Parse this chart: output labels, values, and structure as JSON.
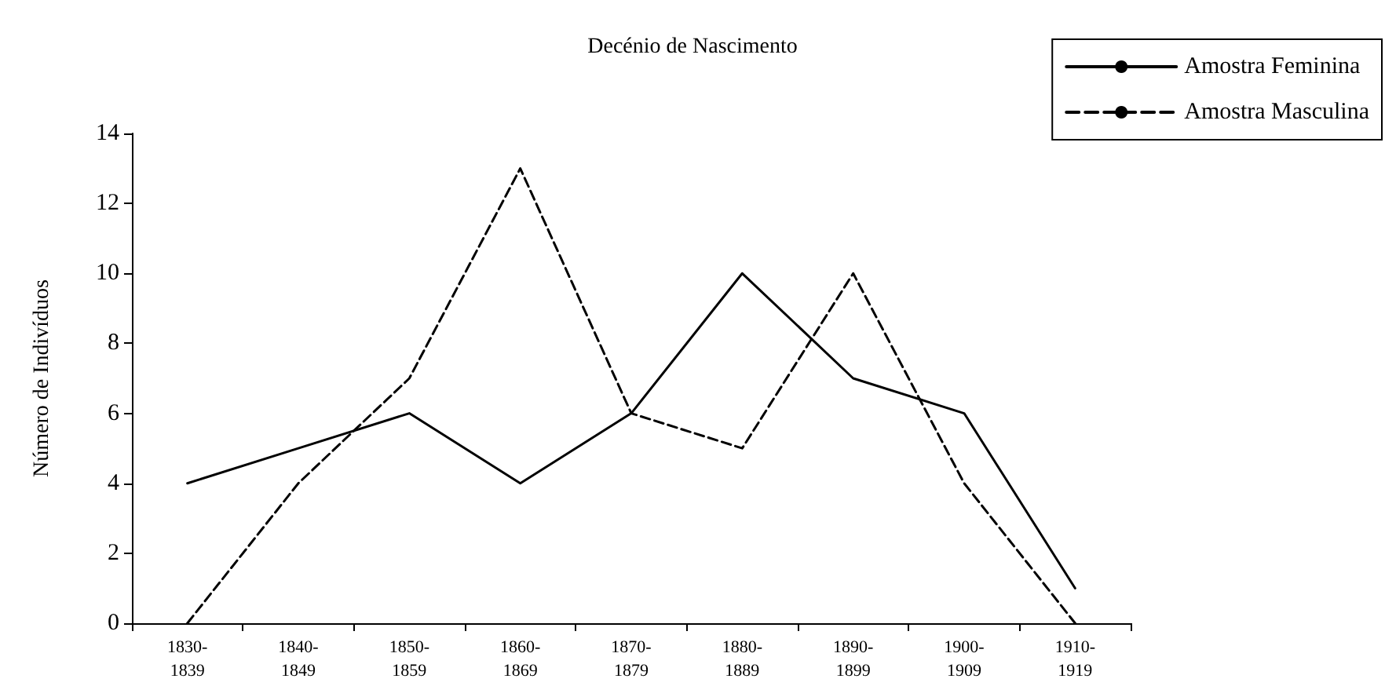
{
  "chart_data": {
    "type": "line",
    "title": "Decénio de Nascimento",
    "ylabel": "Número de Indivíduos",
    "categories": [
      "1830-1839",
      "1840-1849",
      "1850-1859",
      "1860-1869",
      "1870-1879",
      "1880-1889",
      "1890-1899",
      "1900-1909",
      "1910-1919"
    ],
    "series": [
      {
        "name": "Amostra Feminina",
        "color": "#000000",
        "line_style": "solid",
        "values": [
          4,
          5,
          6,
          4,
          6,
          10,
          7,
          6,
          1
        ]
      },
      {
        "name": "Amostra Masculina",
        "color": "#000000",
        "line_style": "dashed",
        "values": [
          0,
          4,
          7,
          13,
          6,
          5,
          10,
          4,
          0
        ]
      }
    ],
    "ylim": [
      0,
      14
    ],
    "yticks": [
      0,
      2,
      4,
      6,
      8,
      10,
      12,
      14
    ],
    "grid": false,
    "legend": "top right",
    "marker": "none"
  }
}
